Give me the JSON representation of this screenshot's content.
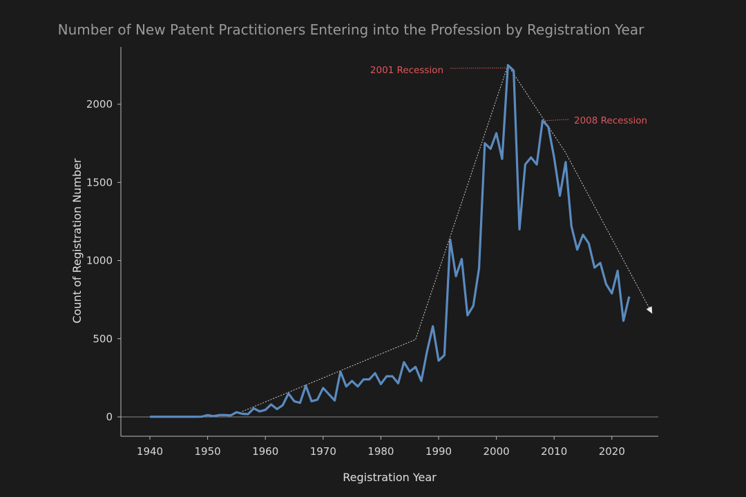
{
  "chart_data": {
    "type": "line",
    "title": "Number of New Patent Practitioners Entering into the Profession by Registration Year",
    "xlabel": "Registration Year",
    "ylabel": "Count of Registration Number",
    "xlim": [
      1935,
      2028
    ],
    "ylim": [
      -125,
      2375
    ],
    "x_ticks": [
      1940,
      1950,
      1960,
      1970,
      1980,
      1990,
      2000,
      2010,
      2020
    ],
    "y_ticks": [
      0,
      500,
      1000,
      1500,
      2000
    ],
    "grid": false,
    "colors": {
      "background": "#1b1b1b",
      "line": "#5b8bc0",
      "trend": "#d0d0d0",
      "annotation": "#e0575b",
      "title": "#9a9a9a"
    },
    "series": [
      {
        "x": [
          1940,
          1941,
          1942,
          1943,
          1944,
          1945,
          1946,
          1947,
          1948,
          1949,
          1950,
          1951,
          1952,
          1953,
          1954,
          1955,
          1956,
          1957,
          1958,
          1959,
          1960,
          1961,
          1962,
          1963,
          1964,
          1965,
          1966,
          1967,
          1968,
          1969,
          1970,
          1971,
          1972,
          1973,
          1974,
          1975,
          1976,
          1977,
          1978,
          1979,
          1980,
          1981,
          1982,
          1983,
          1984,
          1985,
          1986,
          1987,
          1988,
          1989,
          1990,
          1991,
          1992,
          1993,
          1994,
          1995,
          1996,
          1997,
          1998,
          1999,
          2000,
          2001,
          2002,
          2003,
          2004,
          2005,
          2006,
          2007,
          2008,
          2009,
          2010,
          2011,
          2012,
          2013,
          2014,
          2015,
          2016,
          2017,
          2018,
          2019,
          2020,
          2021,
          2022,
          2023
        ],
        "values": [
          1,
          1,
          1,
          1,
          1,
          1,
          1,
          1,
          1,
          2,
          12,
          5,
          12,
          12,
          10,
          30,
          20,
          18,
          55,
          35,
          45,
          80,
          50,
          75,
          150,
          100,
          90,
          200,
          100,
          110,
          185,
          145,
          105,
          290,
          195,
          230,
          195,
          240,
          240,
          280,
          210,
          260,
          260,
          215,
          350,
          290,
          320,
          230,
          420,
          580,
          360,
          395,
          1135,
          900,
          1010,
          650,
          710,
          950,
          1750,
          1715,
          1815,
          1650,
          2250,
          2215,
          1200,
          1615,
          1660,
          1615,
          1895,
          1855,
          1660,
          1415,
          1630,
          1220,
          1070,
          1165,
          1110,
          955,
          985,
          850,
          790,
          935,
          615,
          770
        ]
      }
    ],
    "trend_line": {
      "x": [
        1956,
        1986,
        2002,
        2012,
        2027
      ],
      "values": [
        35,
        495,
        2250,
        1690,
        660
      ]
    },
    "annotations": [
      {
        "text": "2001 Recession",
        "x": 2002,
        "value": 2250
      },
      {
        "text": "2008 Recession",
        "x": 2008,
        "value": 1895
      }
    ]
  }
}
